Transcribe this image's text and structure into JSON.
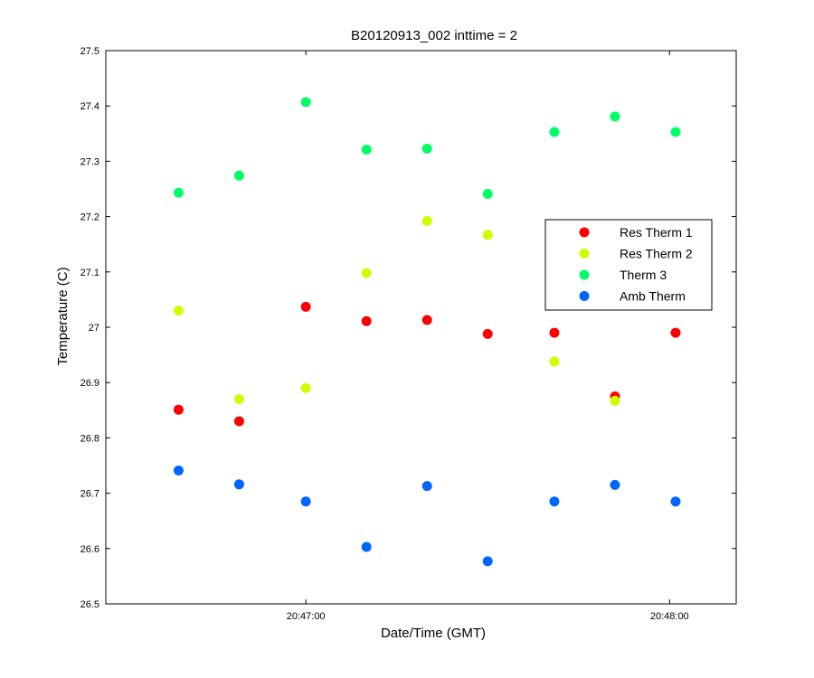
{
  "chart_data": {
    "type": "scatter",
    "title": "B20120913_002 inttime = 2",
    "xlabel": "Date/Time (GMT)",
    "ylabel": "Temperature (C)",
    "xlim": [
      "20:46:27",
      "20:48:11"
    ],
    "ylim": [
      26.5,
      27.5
    ],
    "x_ticks": [
      "20:47:00",
      "20:48:00"
    ],
    "y_ticks": [
      "26.5",
      "26.6",
      "26.7",
      "26.8",
      "26.9",
      "27",
      "27.1",
      "27.2",
      "27.3",
      "27.4",
      "27.5"
    ],
    "grid": false,
    "legend_position": "right",
    "x": [
      "20:46:39",
      "20:46:49",
      "20:47:00",
      "20:47:10",
      "20:47:20",
      "20:47:30",
      "20:47:41",
      "20:47:51",
      "20:48:01"
    ],
    "series": [
      {
        "name": "Res Therm 1",
        "color": "#ff0000",
        "values": [
          26.851,
          26.83,
          27.037,
          27.011,
          27.013,
          26.988,
          26.99,
          26.875,
          26.99
        ]
      },
      {
        "name": "Res Therm 2",
        "color": "#ccff00",
        "values": [
          27.03,
          26.87,
          26.89,
          27.098,
          27.192,
          27.167,
          26.938,
          26.867,
          null
        ]
      },
      {
        "name": "Therm 3",
        "color": "#00ff66",
        "values": [
          27.243,
          27.274,
          27.407,
          27.321,
          27.323,
          27.241,
          27.353,
          27.381,
          27.353
        ]
      },
      {
        "name": "Amb Therm",
        "color": "#0066ff",
        "values": [
          26.741,
          26.716,
          26.685,
          26.603,
          26.713,
          26.577,
          26.685,
          26.715,
          26.685
        ]
      }
    ]
  }
}
